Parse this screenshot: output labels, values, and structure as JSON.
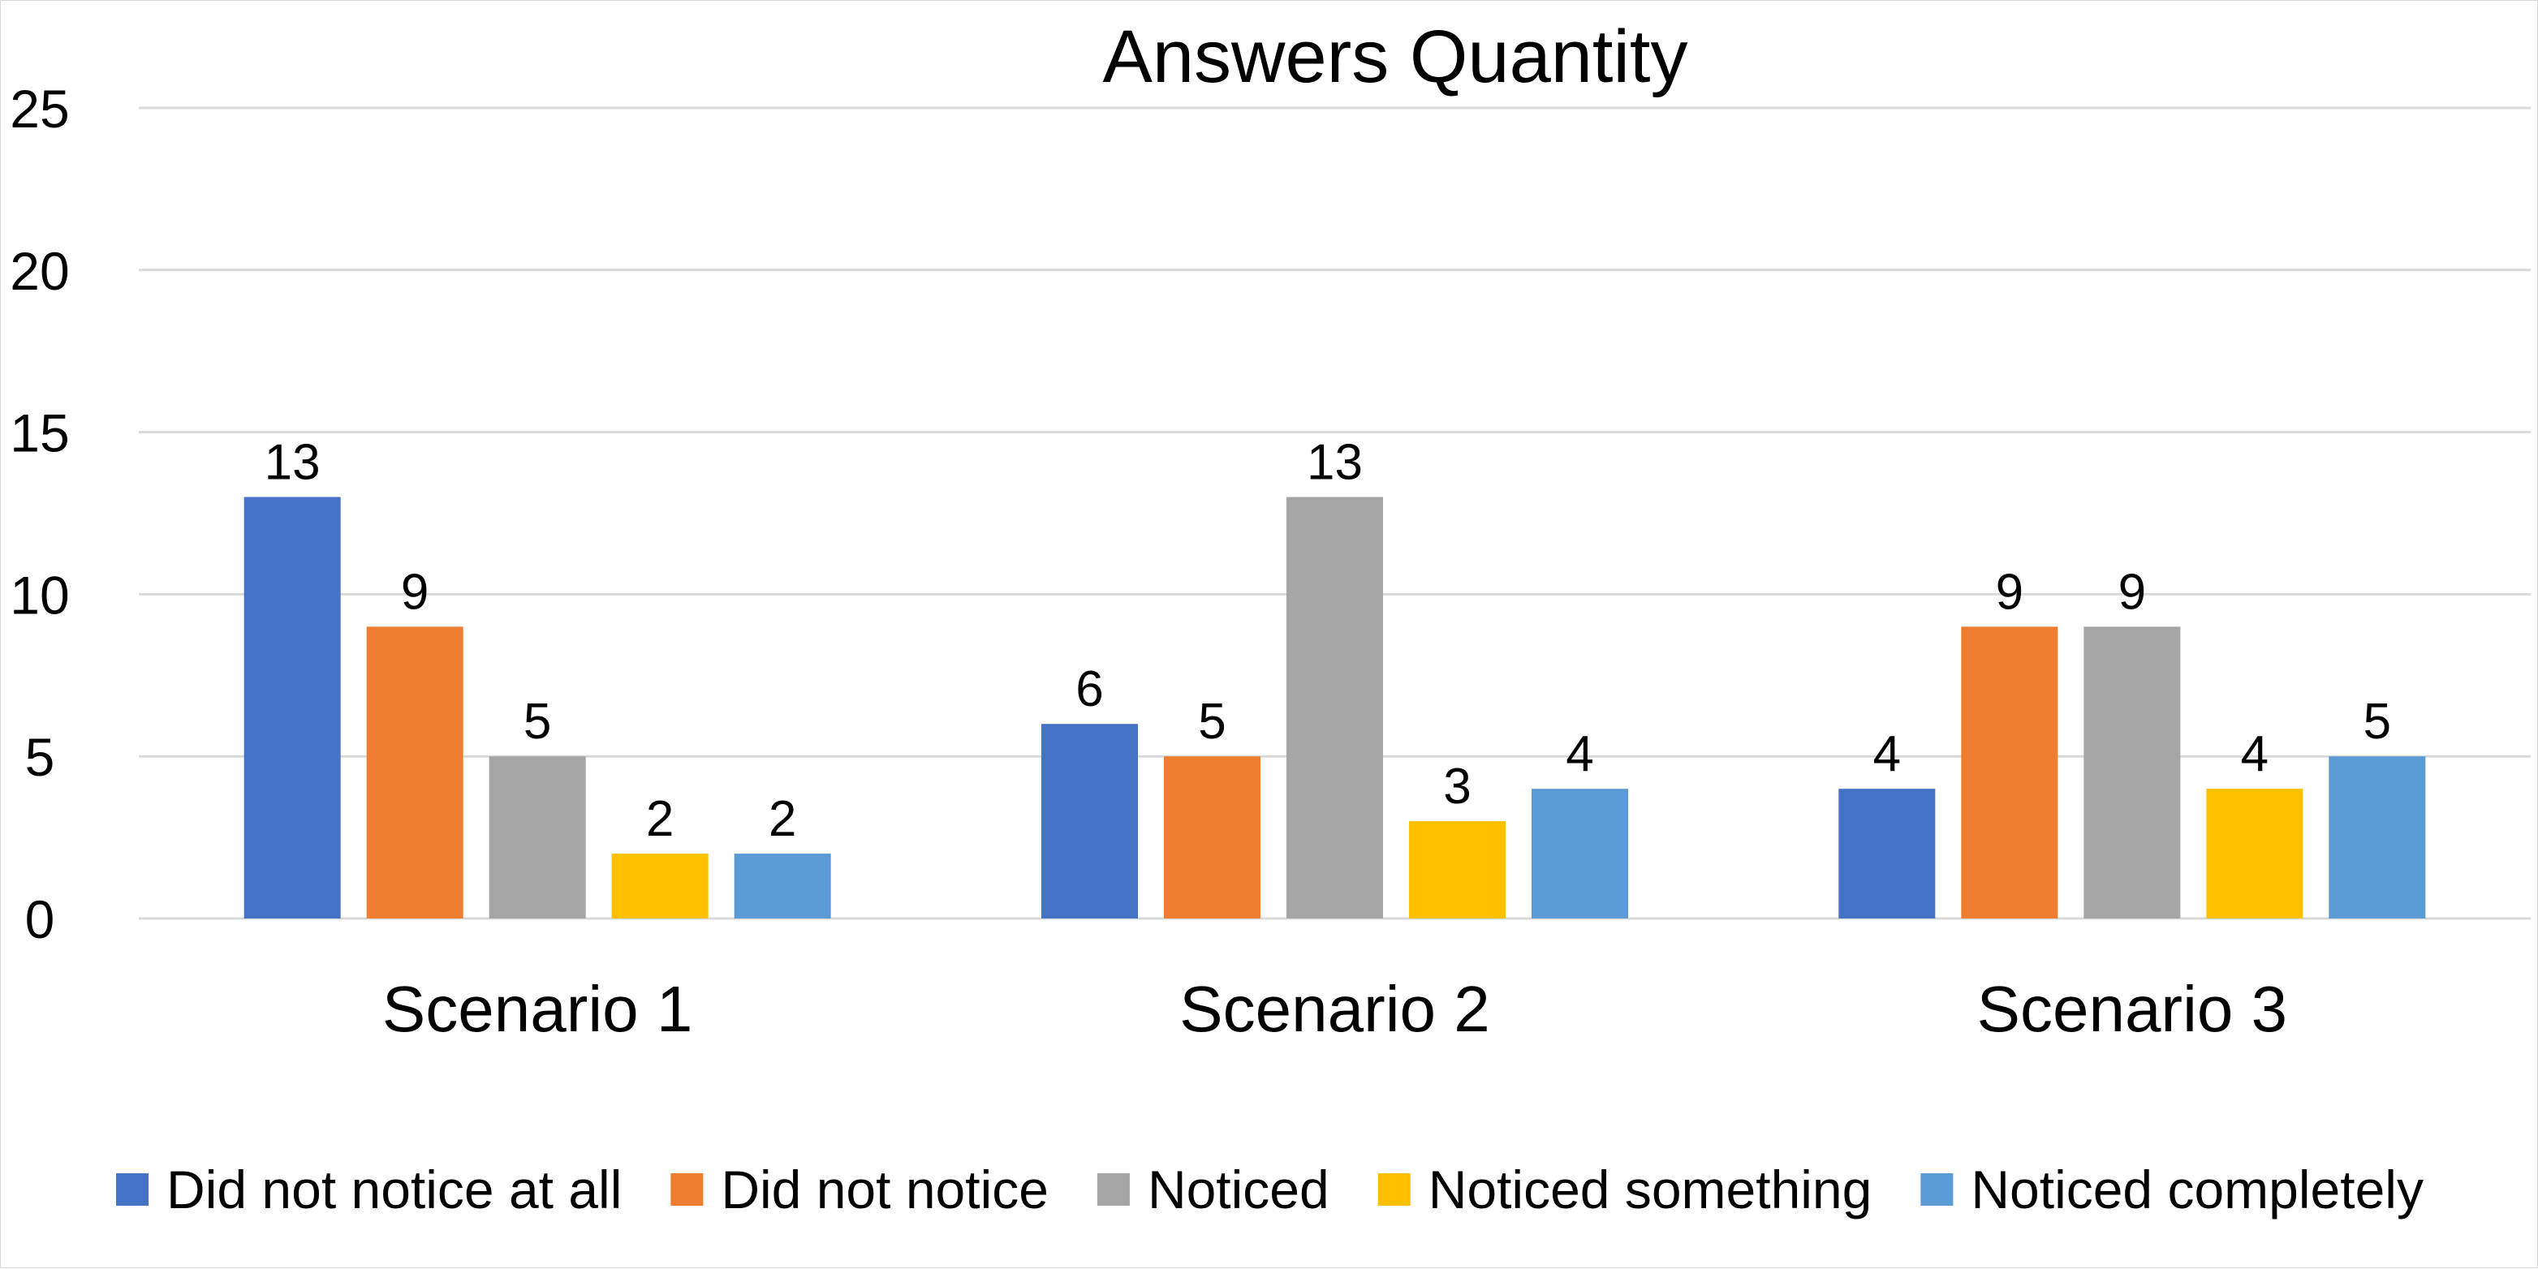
{
  "chart_data": {
    "type": "bar",
    "title": "Answers Quantity",
    "categories": [
      "Scenario 1",
      "Scenario 2",
      "Scenario 3"
    ],
    "series": [
      {
        "name": "Did not notice at all",
        "color": "#4472C4",
        "values": [
          13,
          6,
          4
        ]
      },
      {
        "name": "Did not notice",
        "color": "#ED7D31",
        "values": [
          9,
          5,
          9
        ]
      },
      {
        "name": "Noticed",
        "color": "#A5A5A5",
        "values": [
          5,
          13,
          9
        ]
      },
      {
        "name": "Noticed something",
        "color": "#FFC000",
        "values": [
          2,
          3,
          4
        ]
      },
      {
        "name": "Noticed completely",
        "color": "#5B9BD5",
        "values": [
          2,
          4,
          5
        ]
      }
    ],
    "ylim": [
      0,
      25
    ],
    "yticks": [
      0,
      5,
      10,
      15,
      20,
      25
    ],
    "grid": true,
    "data_labels": true,
    "legend_position": "bottom"
  }
}
